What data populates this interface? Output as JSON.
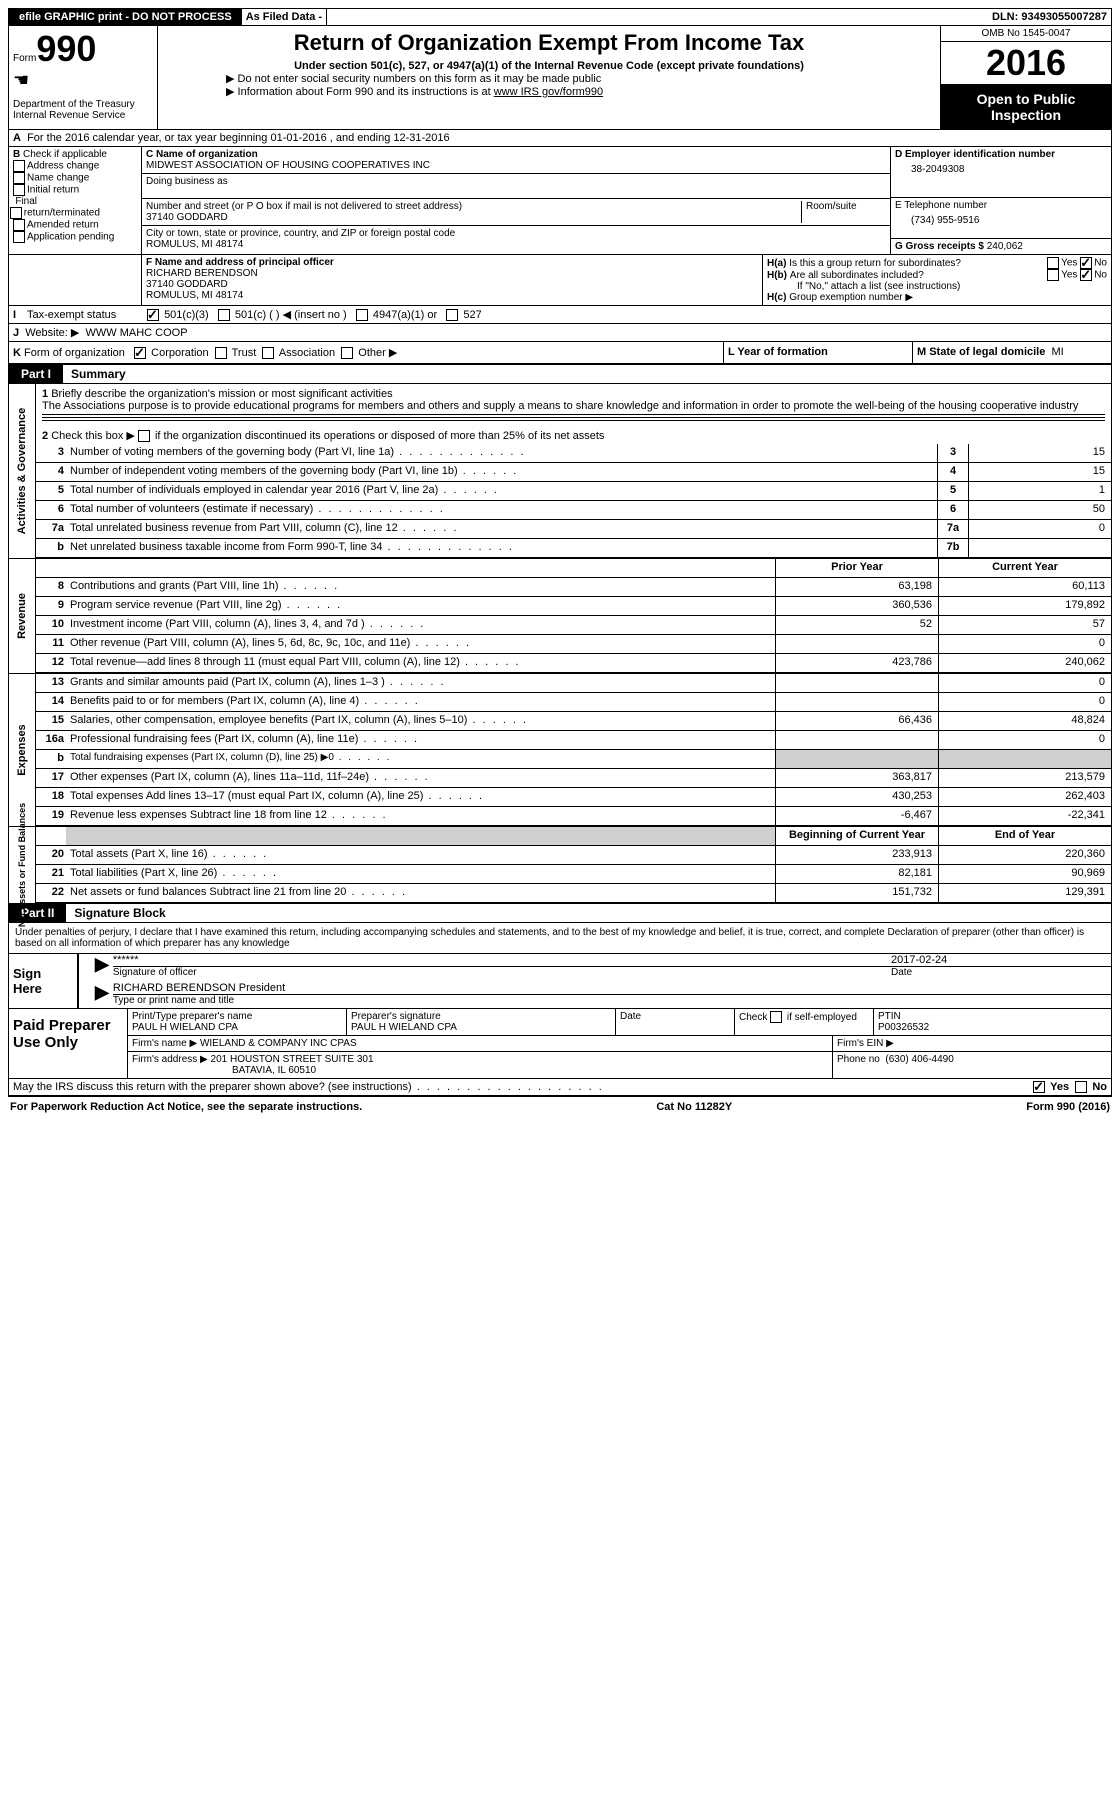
{
  "top": {
    "efile": "efile GRAPHIC print - DO NOT PROCESS",
    "asfiled": "As Filed Data -",
    "dln_label": "DLN:",
    "dln": "93493055007287"
  },
  "header": {
    "form_word": "Form",
    "form_num": "990",
    "dept": "Department of the Treasury",
    "irs": "Internal Revenue Service",
    "title": "Return of Organization Exempt From Income Tax",
    "subtitle": "Under section 501(c), 527, or 4947(a)(1) of the Internal Revenue Code (except private foundations)",
    "note1": "▶ Do not enter social security numbers on this form as it may be made public",
    "note2": "▶ Information about Form 990 and its instructions is at ",
    "note2_link": "www IRS gov/form990",
    "omb_label": "OMB No",
    "omb": "1545-0047",
    "year": "2016",
    "open": "Open to Public Inspection"
  },
  "a_line": "For the 2016 calendar year, or tax year beginning 01-01-2016   , and ending 12-31-2016",
  "b": {
    "title": "Check if applicable",
    "items": [
      "Address change",
      "Name change",
      "Initial return",
      "Final return/terminated",
      "Amended return",
      "Application pending"
    ]
  },
  "c": {
    "name_label": "C Name of organization",
    "name": "MIDWEST ASSOCIATION OF HOUSING COOPERATIVES INC",
    "dba_label": "Doing business as",
    "street_label": "Number and street (or P O  box if mail is not delivered to street address)",
    "room_label": "Room/suite",
    "street": "37140 GODDARD",
    "city_label": "City or town, state or province, country, and ZIP or foreign postal code",
    "city": "ROMULUS, MI  48174"
  },
  "d": {
    "label": "D Employer identification number",
    "val": "38-2049308"
  },
  "e": {
    "label": "E Telephone number",
    "val": "(734) 955-9516"
  },
  "g": {
    "label": "G Gross receipts $",
    "val": "240,062"
  },
  "f": {
    "label": "F  Name and address of principal officer",
    "name": "RICHARD BERENDSON",
    "street": "37140 GODDARD",
    "city": "ROMULUS, MI  48174"
  },
  "h": {
    "a": "Is this a group return for subordinates?",
    "b": "Are all subordinates included?",
    "b_note": "If \"No,\" attach a list  (see instructions)",
    "c": "Group exemption number ▶",
    "yes": "Yes",
    "no": "No"
  },
  "i": {
    "label": "Tax-exempt status",
    "opts": [
      "501(c)(3)",
      "501(c) (   ) ◀ (insert no )",
      "4947(a)(1) or",
      "527"
    ]
  },
  "j": {
    "label": "Website: ▶",
    "val": "WWW MAHC COOP"
  },
  "k": {
    "label": "Form of organization",
    "opts": [
      "Corporation",
      "Trust",
      "Association",
      "Other ▶"
    ]
  },
  "l": {
    "label": "L Year of formation"
  },
  "m": {
    "label": "M State of legal domicile",
    "val": "MI"
  },
  "part1": {
    "tab": "Part I",
    "title": "Summary"
  },
  "s1": {
    "q": "Briefly describe the organization's mission or most significant activities",
    "a": "The Associations purpose is to provide educational programs for members and others and supply a means to share knowledge and information in order to promote the well-being of the housing cooperative industry"
  },
  "s2": "Check this box ▶      if the organization discontinued its operations or disposed of more than 25% of its net assets",
  "lines_top": [
    {
      "n": "3",
      "t": "Number of voting members of the governing body (Part VI, line 1a)",
      "box": "3",
      "v": "15",
      "dots": "dots"
    },
    {
      "n": "4",
      "t": "Number of independent voting members of the governing body (Part VI, line 1b)",
      "box": "4",
      "v": "15",
      "dots": "dots-short"
    },
    {
      "n": "5",
      "t": "Total number of individuals employed in calendar year 2016 (Part V, line 2a)",
      "box": "5",
      "v": "1",
      "dots": "dots-short"
    },
    {
      "n": "6",
      "t": "Total number of volunteers (estimate if necessary)",
      "box": "6",
      "v": "50",
      "dots": "dots"
    },
    {
      "n": "7a",
      "t": "Total unrelated business revenue from Part VIII, column (C), line 12",
      "box": "7a",
      "v": "0",
      "dots": "dots-short"
    },
    {
      "n": "b",
      "t": "Net unrelated business taxable income from Form 990-T, line 34",
      "box": "7b",
      "v": "",
      "dots": "dots"
    }
  ],
  "col_headers": {
    "prior": "Prior Year",
    "curr": "Current Year"
  },
  "revenue": [
    {
      "n": "8",
      "t": "Contributions and grants (Part VIII, line 1h)",
      "p": "63,198",
      "c": "60,113"
    },
    {
      "n": "9",
      "t": "Program service revenue (Part VIII, line 2g)",
      "p": "360,536",
      "c": "179,892"
    },
    {
      "n": "10",
      "t": "Investment income (Part VIII, column (A), lines 3, 4, and 7d )",
      "p": "52",
      "c": "57"
    },
    {
      "n": "11",
      "t": "Other revenue (Part VIII, column (A), lines 5, 6d, 8c, 9c, 10c, and 11e)",
      "p": "",
      "c": "0"
    },
    {
      "n": "12",
      "t": "Total revenue—add lines 8 through 11 (must equal Part VIII, column (A), line 12)",
      "p": "423,786",
      "c": "240,062"
    }
  ],
  "expenses": [
    {
      "n": "13",
      "t": "Grants and similar amounts paid (Part IX, column (A), lines 1–3 )",
      "p": "",
      "c": "0"
    },
    {
      "n": "14",
      "t": "Benefits paid to or for members (Part IX, column (A), line 4)",
      "p": "",
      "c": "0"
    },
    {
      "n": "15",
      "t": "Salaries, other compensation, employee benefits (Part IX, column (A), lines 5–10)",
      "p": "66,436",
      "c": "48,824"
    },
    {
      "n": "16a",
      "t": "Professional fundraising fees (Part IX, column (A), line 11e)",
      "p": "",
      "c": "0"
    },
    {
      "n": "b",
      "t": "Total fundraising expenses (Part IX, column (D), line 25) ▶0",
      "p": "SHADE",
      "c": "SHADE",
      "small": true
    },
    {
      "n": "17",
      "t": "Other expenses (Part IX, column (A), lines 11a–11d, 11f–24e)",
      "p": "363,817",
      "c": "213,579"
    },
    {
      "n": "18",
      "t": "Total expenses  Add lines 13–17 (must equal Part IX, column (A), line 25)",
      "p": "430,253",
      "c": "262,403"
    },
    {
      "n": "19",
      "t": "Revenue less expenses  Subtract line 18 from line 12",
      "p": "-6,467",
      "c": "-22,341"
    }
  ],
  "net_headers": {
    "b": "Beginning of Current Year",
    "e": "End of Year"
  },
  "netassets": [
    {
      "n": "20",
      "t": "Total assets (Part X, line 16)",
      "p": "233,913",
      "c": "220,360"
    },
    {
      "n": "21",
      "t": "Total liabilities (Part X, line 26)",
      "p": "82,181",
      "c": "90,969"
    },
    {
      "n": "22",
      "t": "Net assets or fund balances  Subtract line 21 from line 20",
      "p": "151,732",
      "c": "129,391"
    }
  ],
  "side_labels": {
    "gov": "Activities & Governance",
    "rev": "Revenue",
    "exp": "Expenses",
    "net": "Net Assets or Fund Balances"
  },
  "part2": {
    "tab": "Part II",
    "title": "Signature Block"
  },
  "perjury": "Under penalties of perjury, I declare that I have examined this return, including accompanying schedules and statements, and to the best of my knowledge and belief, it is true, correct, and complete  Declaration of preparer (other than officer) is based on all information of which preparer has any knowledge",
  "sign": {
    "here": "Sign Here",
    "stars": "******",
    "sig_label": "Signature of officer",
    "date": "2017-02-24",
    "date_label": "Date",
    "name": "RICHARD BERENDSON President",
    "name_label": "Type or print name and title"
  },
  "prep": {
    "left": "Paid Preparer Use Only",
    "r1": {
      "a_label": "Print/Type preparer's name",
      "a": "PAUL H WIELAND CPA",
      "b_label": "Preparer's signature",
      "b": "PAUL H WIELAND CPA",
      "c_label": "Date",
      "d_label": "Check        if self-employed",
      "e_label": "PTIN",
      "e": "P00326532"
    },
    "r2": {
      "label": "Firm's name    ▶",
      "val": "WIELAND & COMPANY INC CPAS",
      "ein_label": "Firm's EIN ▶"
    },
    "r3": {
      "label": "Firm's address ▶",
      "val1": "201 HOUSTON STREET SUITE 301",
      "val2": "BATAVIA, IL  60510",
      "ph_label": "Phone no",
      "ph": "(630) 406-4490"
    }
  },
  "discuss": {
    "q": "May the IRS discuss this return with the preparer shown above? (see instructions)",
    "yes": "Yes",
    "no": "No"
  },
  "footer": {
    "left": "For Paperwork Reduction Act Notice, see the separate instructions.",
    "mid": "Cat No 11282Y",
    "right": "Form 990 (2016)"
  }
}
